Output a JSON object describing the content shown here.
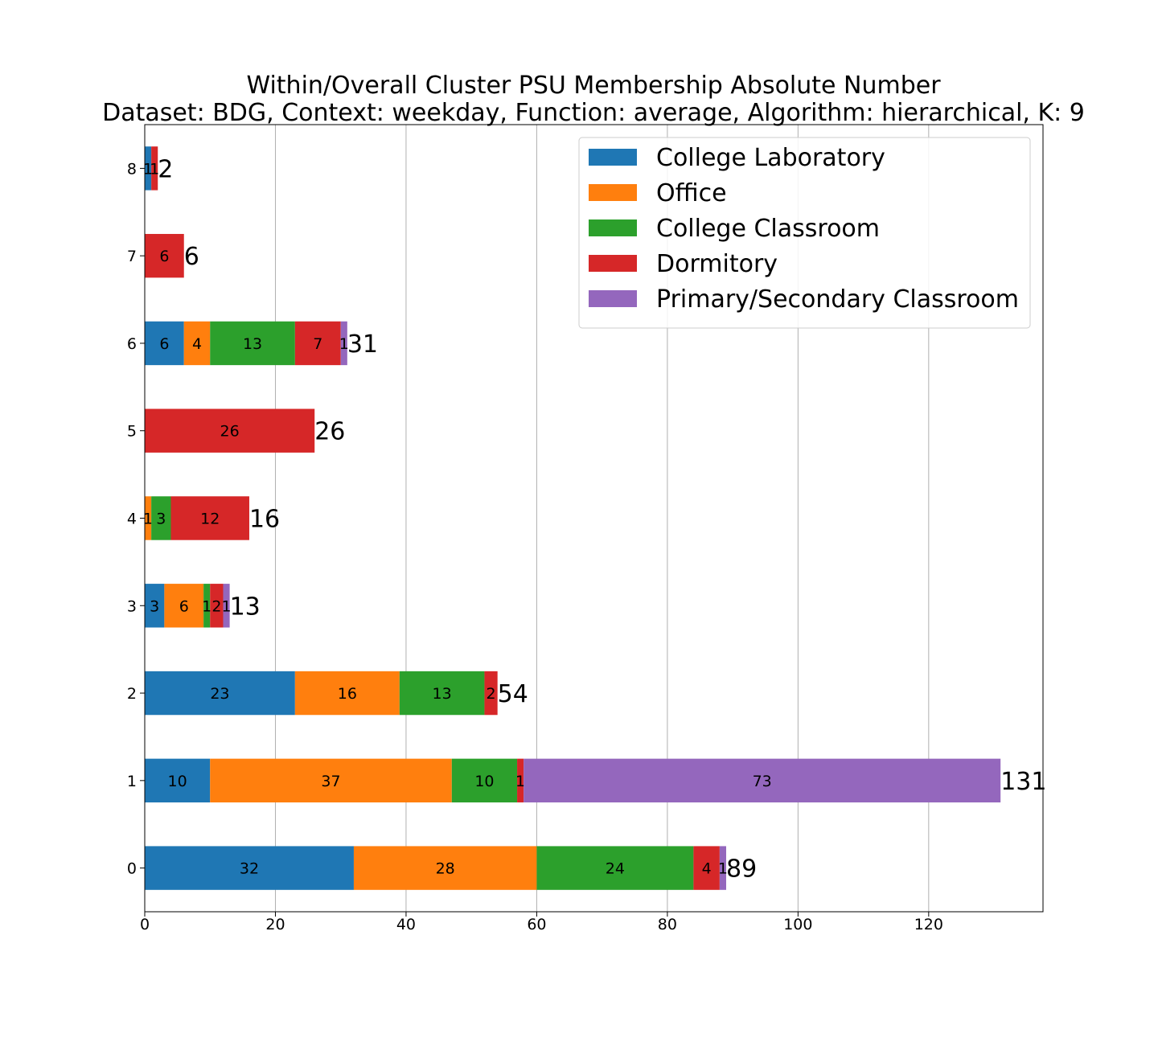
{
  "chart_data": {
    "type": "bar",
    "orientation": "horizontal",
    "stacked": true,
    "title": "Within/Overall Cluster PSU Membership Absolute Number",
    "subtitle": "Dataset: BDG, Context: weekday, Function: average, Algorithm: hierarchical, K: 9",
    "xlabel": "",
    "ylabel": "",
    "xlim": [
      0,
      137.5
    ],
    "x_ticks": [
      0,
      20,
      40,
      60,
      80,
      100,
      120
    ],
    "grid": "vertical",
    "legend_position": "top-right",
    "categories": [
      "0",
      "1",
      "2",
      "3",
      "4",
      "5",
      "6",
      "7",
      "8"
    ],
    "series": [
      {
        "name": "College Laboratory",
        "color": "#1f77b4",
        "values": [
          32,
          10,
          23,
          3,
          0,
          0,
          6,
          0,
          1
        ]
      },
      {
        "name": "Office",
        "color": "#ff7f0e",
        "values": [
          28,
          37,
          16,
          6,
          1,
          0,
          4,
          0,
          0
        ]
      },
      {
        "name": "College Classroom",
        "color": "#2ca02c",
        "values": [
          24,
          10,
          13,
          1,
          3,
          0,
          13,
          0,
          0
        ]
      },
      {
        "name": "Dormitory",
        "color": "#d62728",
        "values": [
          4,
          1,
          2,
          2,
          12,
          26,
          7,
          6,
          1
        ]
      },
      {
        "name": "Primary/Secondary Classroom",
        "color": "#9467bd",
        "values": [
          1,
          73,
          0,
          1,
          0,
          0,
          1,
          0,
          0
        ]
      }
    ],
    "totals": [
      89,
      131,
      54,
      13,
      16,
      26,
      31,
      6,
      2
    ]
  }
}
